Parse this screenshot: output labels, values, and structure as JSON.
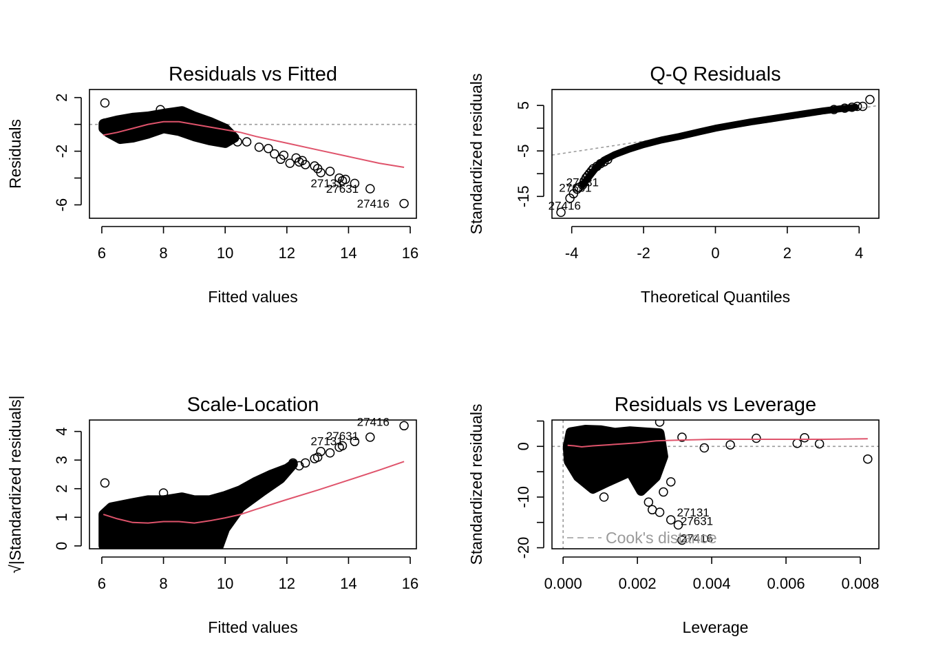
{
  "chart_data": [
    {
      "id": "rvf",
      "type": "scatter",
      "title": "Residuals vs Fitted",
      "xlabel": "Fitted values",
      "ylabel": "Residuals",
      "xlim": [
        5.6,
        16.2
      ],
      "ylim": [
        -7,
        2.6
      ],
      "xticks": [
        6,
        8,
        10,
        12,
        14,
        16
      ],
      "yticks": [
        2,
        0,
        -2,
        -4,
        -6
      ],
      "yticklabels": [
        "2",
        "",
        "-2",
        "",
        "-6"
      ],
      "hline": 0,
      "cloud": [
        [
          6.05,
          0.05
        ],
        [
          6.5,
          0.3
        ],
        [
          7.0,
          0.5
        ],
        [
          7.5,
          0.6
        ],
        [
          8.0,
          0.8
        ],
        [
          8.6,
          1.0
        ],
        [
          9.0,
          0.6
        ],
        [
          9.5,
          0.2
        ],
        [
          10.0,
          -0.3
        ],
        [
          10.3,
          -1.0
        ],
        [
          10.0,
          -1.4
        ],
        [
          9.5,
          -1.2
        ],
        [
          9.0,
          -0.9
        ],
        [
          8.5,
          -0.5
        ],
        [
          8.0,
          -0.3
        ],
        [
          7.5,
          -0.7
        ],
        [
          7.0,
          -1.0
        ],
        [
          6.6,
          -1.1
        ],
        [
          6.2,
          -0.6
        ],
        [
          6.05,
          -0.3
        ]
      ],
      "points": [
        [
          6.1,
          1.6
        ],
        [
          6.1,
          0.1
        ],
        [
          7.9,
          1.1
        ],
        [
          10.4,
          -1.3
        ],
        [
          10.7,
          -1.3
        ],
        [
          11.1,
          -1.7
        ],
        [
          11.4,
          -1.8
        ],
        [
          11.6,
          -2.2
        ],
        [
          11.8,
          -2.6
        ],
        [
          11.9,
          -2.3
        ],
        [
          12.1,
          -2.9
        ],
        [
          12.3,
          -2.5
        ],
        [
          12.4,
          -2.8
        ],
        [
          12.5,
          -2.7
        ],
        [
          12.6,
          -3.0
        ],
        [
          12.9,
          -3.1
        ],
        [
          13.0,
          -3.3
        ],
        [
          13.1,
          -3.6
        ],
        [
          13.4,
          -3.5
        ],
        [
          13.7,
          -4.0
        ],
        [
          13.8,
          -4.2
        ],
        [
          13.9,
          -4.1
        ],
        [
          14.2,
          -4.4
        ],
        [
          14.7,
          -4.8
        ],
        [
          15.8,
          -5.9
        ]
      ],
      "labels": [
        {
          "x": 13.3,
          "y": -4.7,
          "text": "27131"
        },
        {
          "x": 13.8,
          "y": -5.1,
          "text": "27631"
        },
        {
          "x": 14.8,
          "y": -6.2,
          "text": "27416"
        }
      ],
      "smooth": [
        [
          6.05,
          -0.8
        ],
        [
          6.5,
          -0.6
        ],
        [
          7.0,
          -0.3
        ],
        [
          7.5,
          0.0
        ],
        [
          8.0,
          0.2
        ],
        [
          8.5,
          0.2
        ],
        [
          9.0,
          0.0
        ],
        [
          9.5,
          -0.2
        ],
        [
          10.0,
          -0.4
        ],
        [
          10.5,
          -0.6
        ],
        [
          11.0,
          -0.9
        ],
        [
          12.0,
          -1.4
        ],
        [
          13.0,
          -1.9
        ],
        [
          14.0,
          -2.4
        ],
        [
          15.0,
          -2.9
        ],
        [
          15.8,
          -3.2
        ]
      ]
    },
    {
      "id": "qq",
      "type": "scatter",
      "title": "Q-Q Residuals",
      "xlabel": "Theoretical Quantiles",
      "ylabel": "Standardized residuals",
      "xlim": [
        -4.55,
        4.55
      ],
      "ylim": [
        -19.8,
        8.5
      ],
      "xticks": [
        -4,
        -2,
        0,
        2,
        4
      ],
      "yticks": [
        5,
        0,
        -5,
        -10,
        -15
      ],
      "yticklabels": [
        "5",
        "",
        "-5",
        "",
        "-15"
      ],
      "refline": [
        [
          -4.55,
          -5.9
        ],
        [
          4.55,
          5.0
        ]
      ],
      "curve": [
        [
          -3.7,
          -12.5
        ],
        [
          -3.5,
          -10.5
        ],
        [
          -3.3,
          -8.5
        ],
        [
          -3.1,
          -7.0
        ],
        [
          -2.8,
          -5.8
        ],
        [
          -2.4,
          -4.6
        ],
        [
          -2.0,
          -3.6
        ],
        [
          -1.5,
          -2.6
        ],
        [
          -1.0,
          -1.8
        ],
        [
          -0.5,
          -0.9
        ],
        [
          0.0,
          0.0
        ],
        [
          0.5,
          0.7
        ],
        [
          1.0,
          1.4
        ],
        [
          1.5,
          2.0
        ],
        [
          2.0,
          2.6
        ],
        [
          2.5,
          3.2
        ],
        [
          3.0,
          3.8
        ],
        [
          3.5,
          4.3
        ],
        [
          3.9,
          4.6
        ]
      ],
      "points": [
        [
          -4.3,
          -18.5
        ],
        [
          -4.05,
          -15.4
        ],
        [
          -3.95,
          -14.4
        ],
        [
          -3.85,
          -13.4
        ],
        [
          -3.8,
          -13.0
        ],
        [
          -3.7,
          -12.5
        ],
        [
          -3.65,
          -11.6
        ],
        [
          -3.6,
          -10.9
        ],
        [
          -3.55,
          -10.4
        ],
        [
          -3.5,
          -9.9
        ],
        [
          -3.45,
          -9.4
        ],
        [
          -3.4,
          -8.9
        ],
        [
          -3.3,
          -8.4
        ],
        [
          -3.2,
          -7.8
        ],
        [
          -3.1,
          -7.4
        ],
        [
          -3.0,
          -6.9
        ],
        [
          3.3,
          4.1
        ],
        [
          3.6,
          4.4
        ],
        [
          3.8,
          4.6
        ],
        [
          3.95,
          4.8
        ],
        [
          4.1,
          4.8
        ],
        [
          4.3,
          6.3
        ]
      ],
      "labels": [
        {
          "x": -3.7,
          "y": -12.8,
          "text": "27131"
        },
        {
          "x": -3.9,
          "y": -14.0,
          "text": "27631"
        },
        {
          "x": -4.2,
          "y": -17.9,
          "text": "27416"
        }
      ]
    },
    {
      "id": "sl",
      "type": "scatter",
      "title": "Scale-Location",
      "xlabel": "Fitted values",
      "ylabel": "√|Standardized residuals|",
      "xlim": [
        5.6,
        16.2
      ],
      "ylim": [
        -0.1,
        4.4
      ],
      "xticks": [
        6,
        8,
        10,
        12,
        14,
        16
      ],
      "yticks": [
        0,
        1,
        2,
        3,
        4
      ],
      "yticklabels": [
        "0",
        "1",
        "2",
        "3",
        "4"
      ],
      "cloud": [
        [
          6.05,
          0.0
        ],
        [
          6.05,
          1.1
        ],
        [
          6.3,
          1.35
        ],
        [
          7.0,
          1.5
        ],
        [
          7.5,
          1.6
        ],
        [
          8.0,
          1.6
        ],
        [
          8.6,
          1.7
        ],
        [
          9.0,
          1.6
        ],
        [
          9.5,
          1.6
        ],
        [
          10.0,
          1.75
        ],
        [
          10.5,
          1.95
        ],
        [
          11.0,
          2.25
        ],
        [
          11.5,
          2.5
        ],
        [
          12.0,
          2.7
        ],
        [
          12.2,
          2.85
        ],
        [
          11.8,
          2.35
        ],
        [
          11.2,
          1.9
        ],
        [
          10.5,
          1.35
        ],
        [
          10.0,
          0.6
        ],
        [
          9.8,
          0.0
        ]
      ],
      "points": [
        [
          6.1,
          2.2
        ],
        [
          8.0,
          1.85
        ],
        [
          11.8,
          2.55
        ],
        [
          12.0,
          2.7
        ],
        [
          12.2,
          2.9
        ],
        [
          12.4,
          2.8
        ],
        [
          12.6,
          2.9
        ],
        [
          12.9,
          3.05
        ],
        [
          13.0,
          3.1
        ],
        [
          13.1,
          3.3
        ],
        [
          13.4,
          3.25
        ],
        [
          13.7,
          3.45
        ],
        [
          13.8,
          3.5
        ],
        [
          14.2,
          3.65
        ],
        [
          14.7,
          3.8
        ],
        [
          15.8,
          4.2
        ]
      ],
      "labels": [
        {
          "x": 13.3,
          "y": 3.52,
          "text": "27131"
        },
        {
          "x": 13.8,
          "y": 3.7,
          "text": "27631"
        },
        {
          "x": 14.8,
          "y": 4.2,
          "text": "27416"
        }
      ],
      "smooth": [
        [
          6.05,
          1.1
        ],
        [
          6.5,
          0.95
        ],
        [
          7.0,
          0.82
        ],
        [
          7.5,
          0.8
        ],
        [
          8.0,
          0.85
        ],
        [
          8.5,
          0.85
        ],
        [
          9.0,
          0.8
        ],
        [
          9.5,
          0.88
        ],
        [
          10.0,
          0.98
        ],
        [
          10.5,
          1.1
        ],
        [
          11.0,
          1.28
        ],
        [
          12.0,
          1.62
        ],
        [
          13.0,
          1.95
        ],
        [
          14.0,
          2.3
        ],
        [
          15.0,
          2.65
        ],
        [
          15.8,
          2.95
        ]
      ]
    },
    {
      "id": "rvl",
      "type": "scatter",
      "title": "Residuals vs Leverage",
      "xlabel": "Leverage",
      "ylabel": "Standardized residuals",
      "xlim": [
        -0.0003,
        0.0085
      ],
      "ylim": [
        -20.2,
        5.2
      ],
      "xticks": [
        0.0,
        0.002,
        0.004,
        0.006,
        0.008
      ],
      "xticklabels": [
        "0.000",
        "0.002",
        "0.004",
        "0.006",
        "0.008"
      ],
      "yticks": [
        0,
        -10,
        -20
      ],
      "yticklabels": [
        "0",
        "-10",
        "-20"
      ],
      "minor_yticks": [
        5,
        -5,
        -15
      ],
      "hline": 0,
      "vline": 0,
      "legend": "Cook's distance",
      "cloud": [
        [
          0.00012,
          0.0
        ],
        [
          0.0002,
          2.8
        ],
        [
          0.0006,
          3.3
        ],
        [
          0.001,
          3.2
        ],
        [
          0.0014,
          2.7
        ],
        [
          0.0018,
          3.0
        ],
        [
          0.0022,
          2.8
        ],
        [
          0.0026,
          2.6
        ],
        [
          0.0027,
          -2.0
        ],
        [
          0.0025,
          -6.0
        ],
        [
          0.0021,
          -8.8
        ],
        [
          0.0018,
          -5.0
        ],
        [
          0.0015,
          -6.0
        ],
        [
          0.0012,
          -7.0
        ],
        [
          0.0008,
          -8.4
        ],
        [
          0.0004,
          -6.0
        ],
        [
          0.00015,
          -3.0
        ]
      ],
      "points": [
        [
          0.0026,
          4.8
        ],
        [
          0.0032,
          1.8
        ],
        [
          0.0038,
          -0.3
        ],
        [
          0.0045,
          0.3
        ],
        [
          0.0052,
          1.6
        ],
        [
          0.0063,
          0.6
        ],
        [
          0.0065,
          1.7
        ],
        [
          0.0069,
          0.5
        ],
        [
          0.0082,
          -2.5
        ],
        [
          0.0011,
          -10.0
        ],
        [
          0.0023,
          -11.0
        ],
        [
          0.0024,
          -12.5
        ],
        [
          0.0026,
          -13.0
        ],
        [
          0.0029,
          -14.5
        ],
        [
          0.0031,
          -15.5
        ],
        [
          0.0032,
          -18.5
        ],
        [
          0.0029,
          -7.0
        ],
        [
          0.0027,
          -9.0
        ]
      ],
      "labels": [
        {
          "x": 0.0035,
          "y": -13.8,
          "text": "27131"
        },
        {
          "x": 0.0036,
          "y": -15.5,
          "text": "27631"
        },
        {
          "x": 0.0036,
          "y": -18.9,
          "text": "27416"
        }
      ],
      "smooth": [
        [
          0.00012,
          0.2
        ],
        [
          0.0003,
          0.1
        ],
        [
          0.0005,
          -0.1
        ],
        [
          0.0008,
          0.1
        ],
        [
          0.0012,
          0.3
        ],
        [
          0.0016,
          0.5
        ],
        [
          0.002,
          0.7
        ],
        [
          0.0025,
          1.1
        ],
        [
          0.003,
          1.2
        ],
        [
          0.004,
          1.4
        ],
        [
          0.005,
          1.4
        ],
        [
          0.006,
          1.4
        ],
        [
          0.007,
          1.4
        ],
        [
          0.0082,
          1.5
        ]
      ]
    }
  ]
}
